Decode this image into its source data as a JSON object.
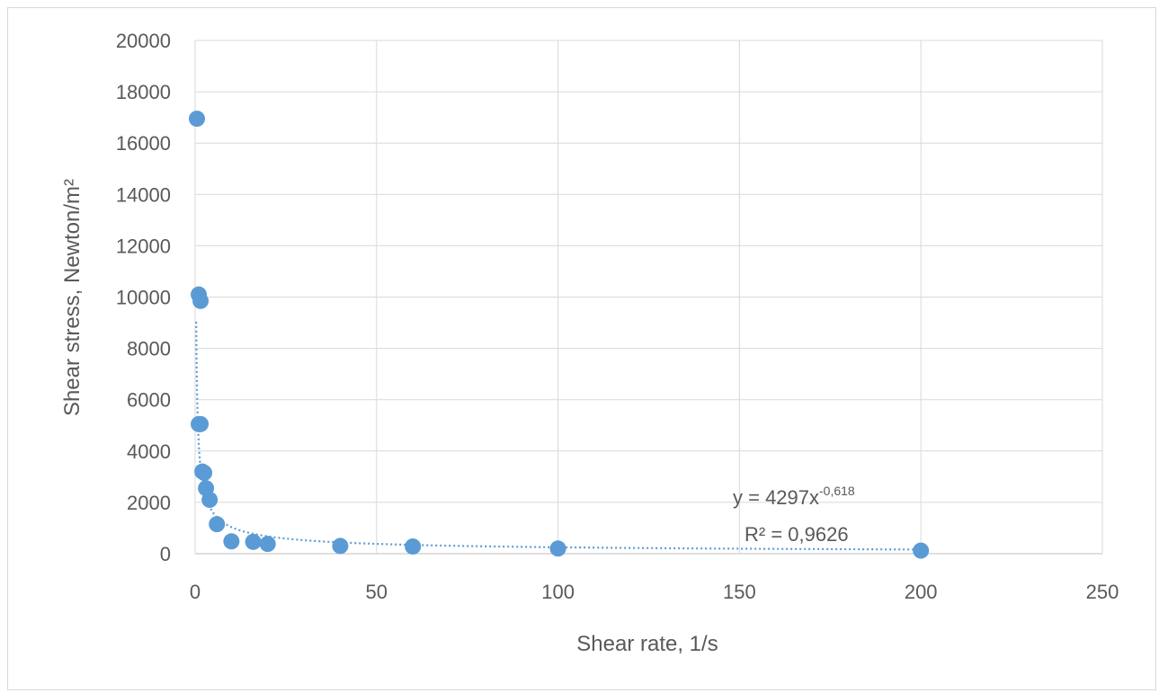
{
  "chart_data": {
    "type": "scatter",
    "xlabel": "Shear rate, 1/s",
    "ylabel": "Shear stress, Newton/m²",
    "xlim": [
      0,
      250
    ],
    "ylim": [
      0,
      20000
    ],
    "x_ticks": [
      "0",
      "50",
      "100",
      "150",
      "200",
      "250"
    ],
    "y_ticks": [
      "0",
      "2000",
      "4000",
      "6000",
      "8000",
      "10000",
      "12000",
      "14000",
      "16000",
      "18000",
      "20000"
    ],
    "grid": true,
    "marker_color": "#5b9bd5",
    "series": [
      {
        "x": [
          0.5,
          1,
          1.5,
          1,
          1.5,
          2,
          2.5,
          3,
          4,
          6,
          10,
          16,
          20,
          40,
          60,
          100,
          200
        ],
        "y": [
          16950,
          10100,
          9850,
          5050,
          5050,
          3200,
          3150,
          2550,
          2100,
          1150,
          480,
          460,
          380,
          300,
          280,
          200,
          120
        ]
      }
    ],
    "trendline": {
      "type": "power",
      "a": 4297,
      "b": -0.618,
      "color": "#5b9bd5",
      "style": "dotted",
      "equation_text": "y = 4297x",
      "equation_exponent": "-0,618",
      "r2_text": "R² = 0,9626"
    }
  }
}
